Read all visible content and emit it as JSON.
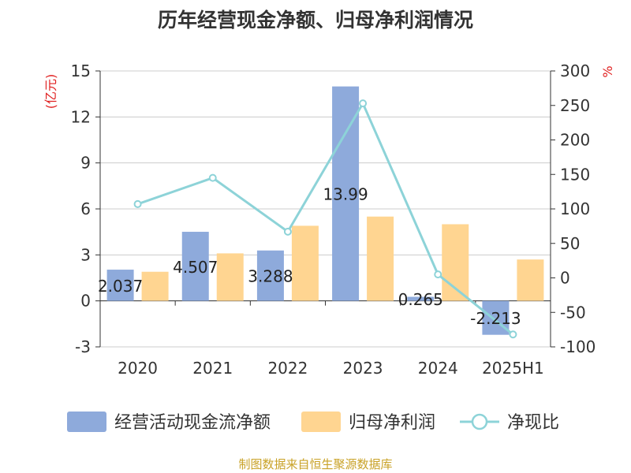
{
  "chart_data": {
    "type": "bar",
    "title": "历年经营现金净额、归母净利润情况",
    "categories": [
      "2020",
      "2021",
      "2022",
      "2023",
      "2024",
      "2025H1"
    ],
    "y_left": {
      "label": "(亿元)",
      "min": -3,
      "max": 15,
      "ticks": [
        -3,
        0,
        3,
        6,
        9,
        12,
        15
      ]
    },
    "y_right": {
      "label": "%",
      "min": -100,
      "max": 300,
      "ticks": [
        -100,
        -50,
        0,
        50,
        100,
        150,
        200,
        250,
        300
      ]
    },
    "series": [
      {
        "name": "经营活动现金流净额",
        "type": "bar",
        "axis": "left",
        "color": "#8eaadb",
        "values": [
          2.037,
          4.507,
          3.288,
          13.99,
          0.265,
          -2.213
        ],
        "labels": [
          "2.037",
          "4.507",
          "3.288",
          "13.99",
          "0.265",
          "-2.213"
        ]
      },
      {
        "name": "归母净利润",
        "type": "bar",
        "axis": "left",
        "color": "#ffd591",
        "values": [
          1.9,
          3.1,
          4.9,
          5.5,
          5.0,
          2.7
        ]
      },
      {
        "name": "净现比",
        "type": "line",
        "axis": "right",
        "color": "#8dd3d8",
        "values": [
          107,
          145,
          67,
          253,
          5,
          -82
        ]
      }
    ],
    "grid": true,
    "legend_position": "bottom",
    "source": "制图数据来自恒生聚源数据库"
  }
}
